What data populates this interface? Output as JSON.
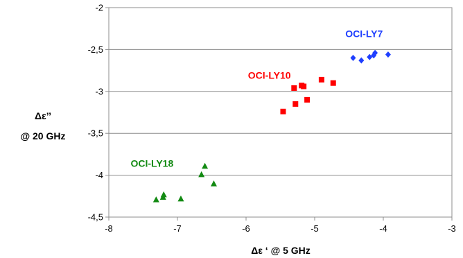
{
  "chart_data": {
    "type": "scatter",
    "xlabel": "Δε ‘ @ 5 GHz",
    "ylabel_line1": "Δε’’",
    "ylabel_line2": "@ 20 GHz",
    "xlim": [
      -8,
      -3
    ],
    "ylim": [
      -4.5,
      -2
    ],
    "x_ticks": [
      -8,
      -7,
      -6,
      -5,
      -4,
      -3
    ],
    "x_tick_labels": [
      "-8",
      "-7",
      "-6",
      "-5",
      "-4",
      "-3"
    ],
    "y_ticks": [
      -2,
      -2.5,
      -3,
      -3.5,
      -4,
      -4.5
    ],
    "y_tick_labels": [
      "-2",
      "-2,5",
      "-3",
      "-3,5",
      "-4",
      "-4,5"
    ],
    "grid": "horizontal",
    "series": [
      {
        "name": "OCI-LY7",
        "color": "#1f3fff",
        "marker": "diamond",
        "points": [
          {
            "x": -4.44,
            "y": -2.6
          },
          {
            "x": -4.32,
            "y": -2.63
          },
          {
            "x": -4.2,
            "y": -2.59
          },
          {
            "x": -4.14,
            "y": -2.57
          },
          {
            "x": -4.12,
            "y": -2.54
          },
          {
            "x": -3.93,
            "y": -2.56
          }
        ]
      },
      {
        "name": "OCI-LY10",
        "color": "#ff0000",
        "marker": "square",
        "points": [
          {
            "x": -5.46,
            "y": -3.24
          },
          {
            "x": -5.3,
            "y": -2.96
          },
          {
            "x": -5.28,
            "y": -3.15
          },
          {
            "x": -5.19,
            "y": -2.93
          },
          {
            "x": -5.16,
            "y": -2.94
          },
          {
            "x": -5.11,
            "y": -3.1
          },
          {
            "x": -4.9,
            "y": -2.86
          },
          {
            "x": -4.73,
            "y": -2.9
          }
        ]
      },
      {
        "name": "OCI-LY18",
        "color": "#128a12",
        "marker": "triangle",
        "points": [
          {
            "x": -7.31,
            "y": -4.29
          },
          {
            "x": -7.21,
            "y": -4.26
          },
          {
            "x": -7.2,
            "y": -4.23
          },
          {
            "x": -6.95,
            "y": -4.28
          },
          {
            "x": -6.65,
            "y": -3.99
          },
          {
            "x": -6.6,
            "y": -3.89
          },
          {
            "x": -6.47,
            "y": -4.1
          }
        ]
      }
    ]
  }
}
